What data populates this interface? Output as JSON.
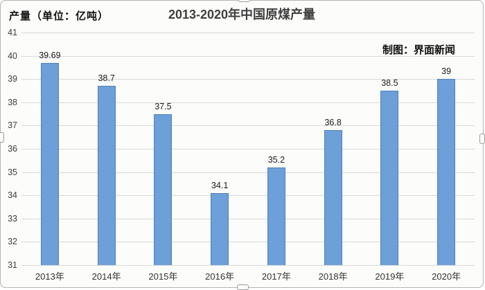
{
  "chart_data": {
    "type": "bar",
    "title": "2013-2020年中国原煤产量",
    "ylabel": "产量（单位：亿吨）",
    "credit": "制图：界面新闻",
    "xlabel": "",
    "categories": [
      "2013年",
      "2014年",
      "2015年",
      "2016年",
      "2017年",
      "2018年",
      "2019年",
      "2020年"
    ],
    "values": [
      39.69,
      38.7,
      37.5,
      34.1,
      35.2,
      36.8,
      38.5,
      39
    ],
    "value_labels": [
      "39.69",
      "38.7",
      "37.5",
      "34.1",
      "35.2",
      "36.8",
      "38.5",
      "39"
    ],
    "ylim": [
      31,
      41
    ],
    "ytick_interval": 1,
    "grid": true,
    "legend_position": "none",
    "colors": {
      "bar_fill": "#6D9FD8",
      "bar_border": "#4F81BD",
      "gridline": "#d9d9d9",
      "title_text": "#3f3f3f",
      "axis_text": "#3d3d3d"
    }
  }
}
